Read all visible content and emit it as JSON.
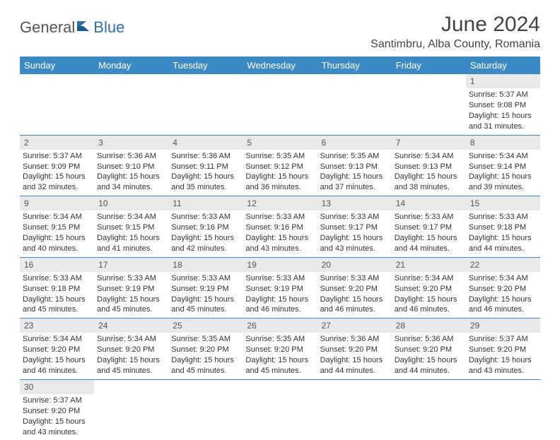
{
  "logo": {
    "text1": "General",
    "text2": "Blue"
  },
  "title": "June 2024",
  "location": "Santimbru, Alba County, Romania",
  "colors": {
    "header_bg": "#3b8ac4",
    "header_text": "#ffffff",
    "daynum_bg": "#e9e9e9",
    "row_border": "#3b8ac4",
    "logo_gray": "#555555",
    "logo_blue": "#2f6fa8"
  },
  "weekdays": [
    "Sunday",
    "Monday",
    "Tuesday",
    "Wednesday",
    "Thursday",
    "Friday",
    "Saturday"
  ],
  "grid": [
    [
      null,
      null,
      null,
      null,
      null,
      null,
      {
        "n": "1",
        "sunrise": "5:37 AM",
        "sunset": "9:08 PM",
        "dlh": "15",
        "dlm": "31"
      }
    ],
    [
      {
        "n": "2",
        "sunrise": "5:37 AM",
        "sunset": "9:09 PM",
        "dlh": "15",
        "dlm": "32"
      },
      {
        "n": "3",
        "sunrise": "5:36 AM",
        "sunset": "9:10 PM",
        "dlh": "15",
        "dlm": "34"
      },
      {
        "n": "4",
        "sunrise": "5:36 AM",
        "sunset": "9:11 PM",
        "dlh": "15",
        "dlm": "35"
      },
      {
        "n": "5",
        "sunrise": "5:35 AM",
        "sunset": "9:12 PM",
        "dlh": "15",
        "dlm": "36"
      },
      {
        "n": "6",
        "sunrise": "5:35 AM",
        "sunset": "9:13 PM",
        "dlh": "15",
        "dlm": "37"
      },
      {
        "n": "7",
        "sunrise": "5:34 AM",
        "sunset": "9:13 PM",
        "dlh": "15",
        "dlm": "38"
      },
      {
        "n": "8",
        "sunrise": "5:34 AM",
        "sunset": "9:14 PM",
        "dlh": "15",
        "dlm": "39"
      }
    ],
    [
      {
        "n": "9",
        "sunrise": "5:34 AM",
        "sunset": "9:15 PM",
        "dlh": "15",
        "dlm": "40"
      },
      {
        "n": "10",
        "sunrise": "5:34 AM",
        "sunset": "9:15 PM",
        "dlh": "15",
        "dlm": "41"
      },
      {
        "n": "11",
        "sunrise": "5:33 AM",
        "sunset": "9:16 PM",
        "dlh": "15",
        "dlm": "42"
      },
      {
        "n": "12",
        "sunrise": "5:33 AM",
        "sunset": "9:16 PM",
        "dlh": "15",
        "dlm": "43"
      },
      {
        "n": "13",
        "sunrise": "5:33 AM",
        "sunset": "9:17 PM",
        "dlh": "15",
        "dlm": "43"
      },
      {
        "n": "14",
        "sunrise": "5:33 AM",
        "sunset": "9:17 PM",
        "dlh": "15",
        "dlm": "44"
      },
      {
        "n": "15",
        "sunrise": "5:33 AM",
        "sunset": "9:18 PM",
        "dlh": "15",
        "dlm": "44"
      }
    ],
    [
      {
        "n": "16",
        "sunrise": "5:33 AM",
        "sunset": "9:18 PM",
        "dlh": "15",
        "dlm": "45"
      },
      {
        "n": "17",
        "sunrise": "5:33 AM",
        "sunset": "9:19 PM",
        "dlh": "15",
        "dlm": "45"
      },
      {
        "n": "18",
        "sunrise": "5:33 AM",
        "sunset": "9:19 PM",
        "dlh": "15",
        "dlm": "45"
      },
      {
        "n": "19",
        "sunrise": "5:33 AM",
        "sunset": "9:19 PM",
        "dlh": "15",
        "dlm": "46"
      },
      {
        "n": "20",
        "sunrise": "5:33 AM",
        "sunset": "9:20 PM",
        "dlh": "15",
        "dlm": "46"
      },
      {
        "n": "21",
        "sunrise": "5:34 AM",
        "sunset": "9:20 PM",
        "dlh": "15",
        "dlm": "46"
      },
      {
        "n": "22",
        "sunrise": "5:34 AM",
        "sunset": "9:20 PM",
        "dlh": "15",
        "dlm": "46"
      }
    ],
    [
      {
        "n": "23",
        "sunrise": "5:34 AM",
        "sunset": "9:20 PM",
        "dlh": "15",
        "dlm": "46"
      },
      {
        "n": "24",
        "sunrise": "5:34 AM",
        "sunset": "9:20 PM",
        "dlh": "15",
        "dlm": "45"
      },
      {
        "n": "25",
        "sunrise": "5:35 AM",
        "sunset": "9:20 PM",
        "dlh": "15",
        "dlm": "45"
      },
      {
        "n": "26",
        "sunrise": "5:35 AM",
        "sunset": "9:20 PM",
        "dlh": "15",
        "dlm": "45"
      },
      {
        "n": "27",
        "sunrise": "5:36 AM",
        "sunset": "9:20 PM",
        "dlh": "15",
        "dlm": "44"
      },
      {
        "n": "28",
        "sunrise": "5:36 AM",
        "sunset": "9:20 PM",
        "dlh": "15",
        "dlm": "44"
      },
      {
        "n": "29",
        "sunrise": "5:37 AM",
        "sunset": "9:20 PM",
        "dlh": "15",
        "dlm": "43"
      }
    ],
    [
      {
        "n": "30",
        "sunrise": "5:37 AM",
        "sunset": "9:20 PM",
        "dlh": "15",
        "dlm": "43"
      },
      null,
      null,
      null,
      null,
      null,
      null
    ]
  ],
  "labels": {
    "sunrise": "Sunrise:",
    "sunset": "Sunset:",
    "daylight_pre": "Daylight:",
    "hours": "hours",
    "and": "and",
    "minutes": "minutes."
  }
}
